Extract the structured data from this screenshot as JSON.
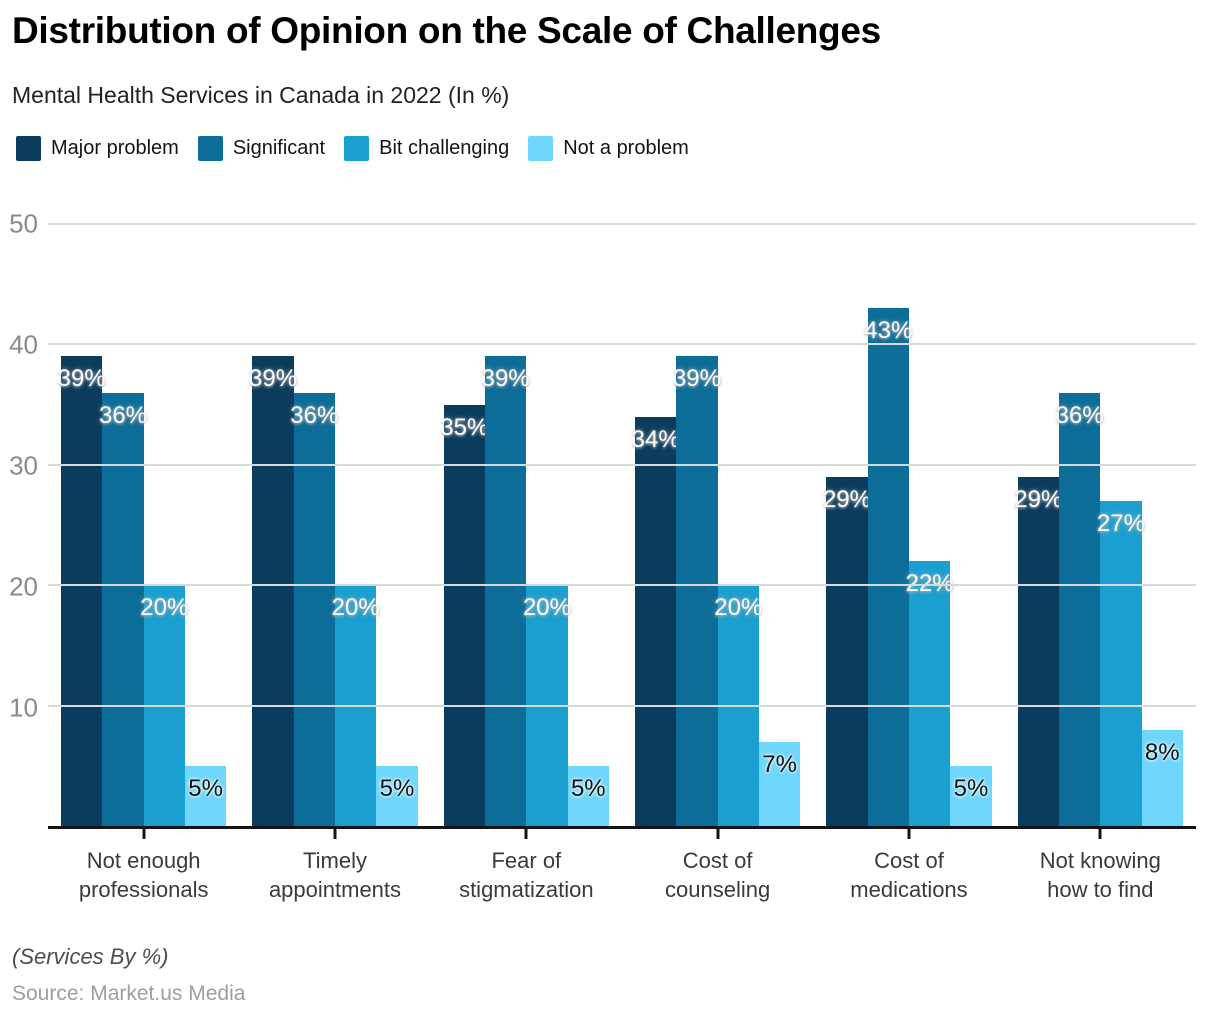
{
  "header": {
    "title": "Distribution of Opinion on the Scale of Challenges",
    "subtitle": "Mental Health Services in Canada in 2022 (In %)"
  },
  "chart_data": {
    "type": "bar",
    "title": "Distribution of Opinion on the Scale of Challenges",
    "subtitle": "Mental Health Services in Canada in 2022 (In %)",
    "categories": [
      "Not enough\nprofessionals",
      "Timely\nappointments",
      "Fear of\nstigmatization",
      "Cost of\ncounseling",
      "Cost of\nmedications",
      "Not knowing\nhow to find"
    ],
    "series": [
      {
        "name": "Major problem",
        "color": "#0b3c5e",
        "label_color": "#ffffff",
        "values": [
          39,
          39,
          35,
          34,
          29,
          29
        ]
      },
      {
        "name": "Significant",
        "color": "#0d6d99",
        "label_color": "#ffffff",
        "values": [
          36,
          36,
          39,
          39,
          43,
          36
        ]
      },
      {
        "name": "Bit challenging",
        "color": "#1b9fd0",
        "label_color": "#ffffff",
        "values": [
          20,
          20,
          20,
          20,
          22,
          27
        ]
      },
      {
        "name": "Not a problem",
        "color": "#6fd7fb",
        "label_color": "#111111",
        "values": [
          5,
          5,
          5,
          7,
          5,
          8
        ]
      }
    ],
    "value_suffix": "%",
    "yticks": [
      50,
      40,
      30,
      20,
      10
    ],
    "ylim": [
      0,
      50
    ],
    "grid": "horizontal-only",
    "legend_position": "top-left",
    "xlabel": "",
    "ylabel": ""
  },
  "footer": {
    "note": "(Services By %)",
    "source": "Source: Market.us Media"
  }
}
